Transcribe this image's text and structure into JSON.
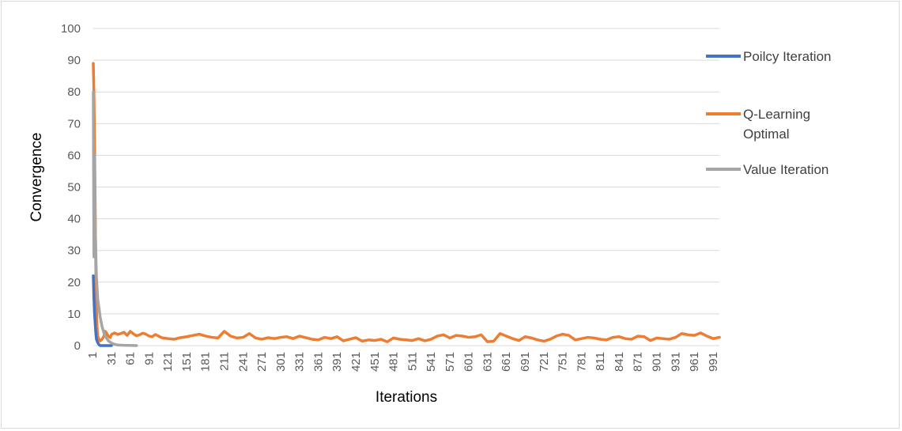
{
  "chart_data": {
    "type": "line",
    "title": "",
    "xlabel": "Iterations",
    "ylabel": "Convergence",
    "ylim": [
      0,
      100
    ],
    "yticks": [
      0,
      10,
      20,
      30,
      40,
      50,
      60,
      70,
      80,
      90,
      100
    ],
    "xlim": [
      1,
      1000
    ],
    "xtick_labels": [
      "1",
      "31",
      "61",
      "91",
      "121",
      "151",
      "181",
      "211",
      "241",
      "271",
      "301",
      "331",
      "361",
      "391",
      "421",
      "451",
      "481",
      "511",
      "541",
      "571",
      "601",
      "631",
      "661",
      "691",
      "721",
      "751",
      "781",
      "811",
      "841",
      "871",
      "901",
      "931",
      "961",
      "991"
    ],
    "grid": "horizontal",
    "legend_position": "right",
    "series": [
      {
        "name": "Poilcy Iteration",
        "color": "#4472C4",
        "x": [
          1,
          2,
          3,
          4,
          5,
          6,
          8,
          10,
          12,
          15,
          20,
          25,
          30
        ],
        "y": [
          22,
          15,
          10,
          7,
          4,
          2,
          1,
          0.3,
          0,
          0,
          0,
          0,
          0
        ]
      },
      {
        "name": "Q-Learning Optimal",
        "color": "#ED7D31",
        "x": [
          1,
          2,
          3,
          4,
          5,
          6,
          7,
          8,
          10,
          12,
          15,
          18,
          20,
          22,
          25,
          28,
          30,
          35,
          40,
          45,
          50,
          55,
          60,
          65,
          70,
          75,
          80,
          85,
          90,
          95,
          100,
          110,
          120,
          130,
          140,
          150,
          160,
          170,
          180,
          190,
          200,
          210,
          220,
          230,
          240,
          250,
          260,
          270,
          280,
          290,
          300,
          310,
          320,
          330,
          340,
          350,
          360,
          370,
          380,
          390,
          400,
          410,
          420,
          430,
          440,
          450,
          460,
          470,
          480,
          490,
          500,
          510,
          520,
          530,
          540,
          550,
          560,
          570,
          580,
          590,
          600,
          610,
          620,
          630,
          640,
          650,
          660,
          670,
          680,
          690,
          700,
          710,
          720,
          730,
          740,
          750,
          760,
          770,
          780,
          790,
          800,
          810,
          820,
          830,
          840,
          850,
          860,
          870,
          880,
          890,
          900,
          910,
          920,
          930,
          940,
          950,
          960,
          970,
          980,
          990,
          1000
        ],
        "y": [
          89,
          80,
          65,
          45,
          25,
          12,
          6,
          3,
          2,
          1.5,
          2,
          3,
          4.5,
          4,
          3,
          2.5,
          3.5,
          4,
          3.5,
          3.8,
          4.2,
          3.2,
          4.5,
          3.7,
          3.1,
          3.4,
          3.9,
          3.6,
          3.0,
          2.8,
          3.5,
          2.5,
          2.2,
          2.0,
          2.5,
          2.8,
          3.2,
          3.6,
          3.0,
          2.6,
          2.4,
          4.5,
          3.0,
          2.4,
          2.6,
          3.8,
          2.4,
          2.0,
          2.5,
          2.2,
          2.6,
          2.8,
          2.2,
          3.0,
          2.5,
          2.0,
          1.8,
          2.6,
          2.2,
          2.8,
          1.5,
          2.0,
          2.5,
          1.4,
          1.8,
          1.6,
          2.0,
          1.2,
          2.4,
          2.0,
          1.8,
          1.6,
          2.2,
          1.5,
          2.0,
          3.0,
          3.4,
          2.4,
          3.2,
          3.0,
          2.6,
          2.8,
          3.4,
          1.2,
          1.4,
          3.8,
          3.0,
          2.2,
          1.6,
          2.8,
          2.4,
          1.8,
          1.4,
          2.0,
          3.0,
          3.6,
          3.2,
          1.8,
          2.2,
          2.6,
          2.4,
          2.0,
          1.8,
          2.6,
          2.8,
          2.2,
          2.0,
          3.0,
          2.8,
          1.6,
          2.4,
          2.2,
          2.0,
          2.6,
          3.8,
          3.4,
          3.2,
          4.0,
          3.0,
          2.2,
          2.6
        ]
      },
      {
        "name": "Value Iteration",
        "color": "#A5A5A5",
        "x": [
          1,
          2,
          3,
          4,
          5,
          6,
          8,
          10,
          12,
          15,
          18,
          20,
          25,
          30,
          35,
          40,
          50,
          60,
          70
        ],
        "y": [
          80,
          28,
          60,
          38,
          30,
          22,
          15,
          12,
          9,
          6,
          4,
          3,
          1.5,
          0.8,
          0.4,
          0.2,
          0.1,
          0.05,
          0
        ]
      }
    ]
  }
}
